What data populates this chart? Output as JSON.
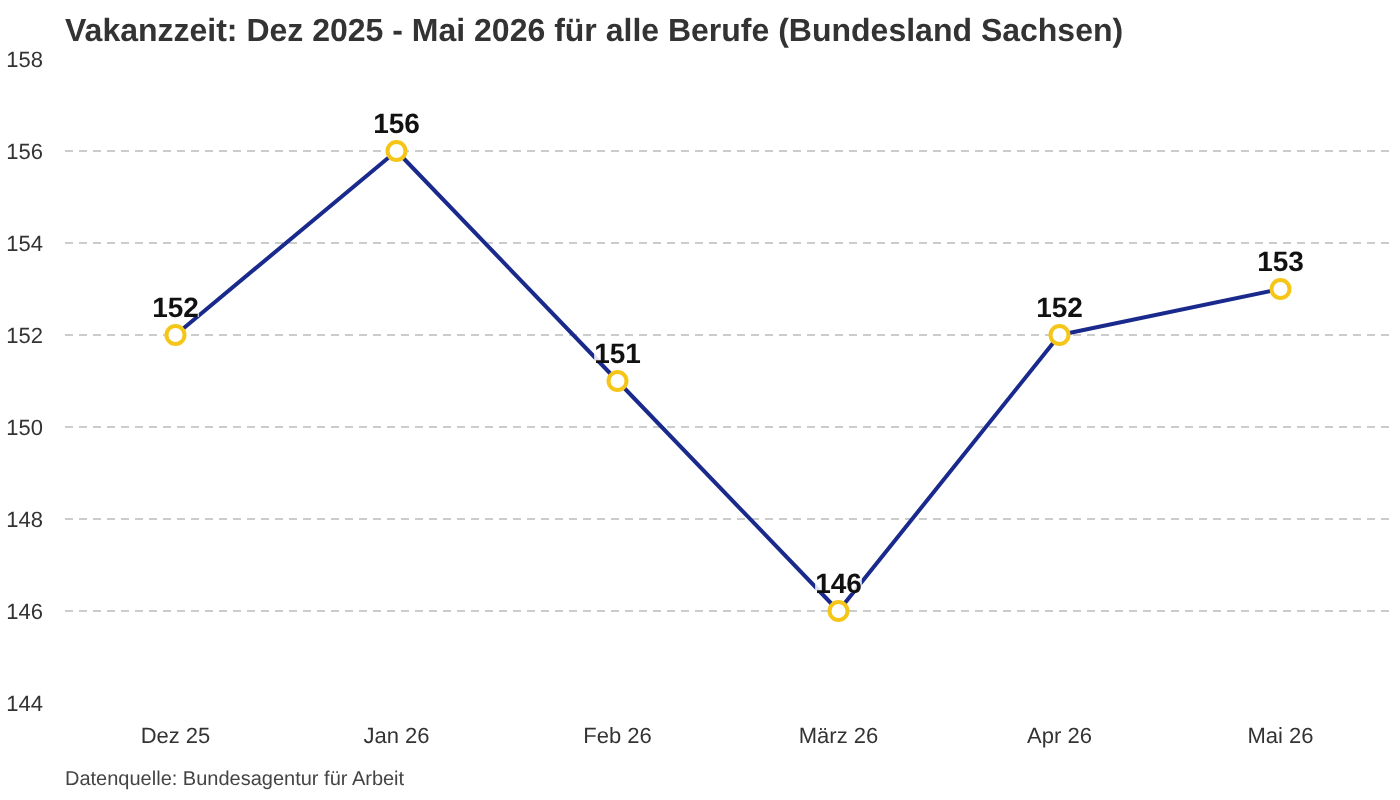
{
  "chart_data": {
    "type": "line",
    "title": "Vakanzzeit: Dez 2025 - Mai 2026 für alle Berufe (Bundesland Sachsen)",
    "categories": [
      "Dez 25",
      "Jan 26",
      "Feb 26",
      "März 26",
      "Apr 26",
      "Mai 26"
    ],
    "series": [
      {
        "color": "#1a2a8c",
        "values": [
          152,
          156,
          151,
          146,
          152,
          153
        ]
      }
    ],
    "ylim": [
      144,
      158
    ],
    "yticks": [
      144,
      146,
      148,
      150,
      152,
      154,
      156,
      158
    ],
    "grid": "y",
    "marker": "circle",
    "line_style": "solid",
    "data_labels": true,
    "annotations": [
      "Datenquelle: Bundesagentur für Arbeit"
    ]
  }
}
